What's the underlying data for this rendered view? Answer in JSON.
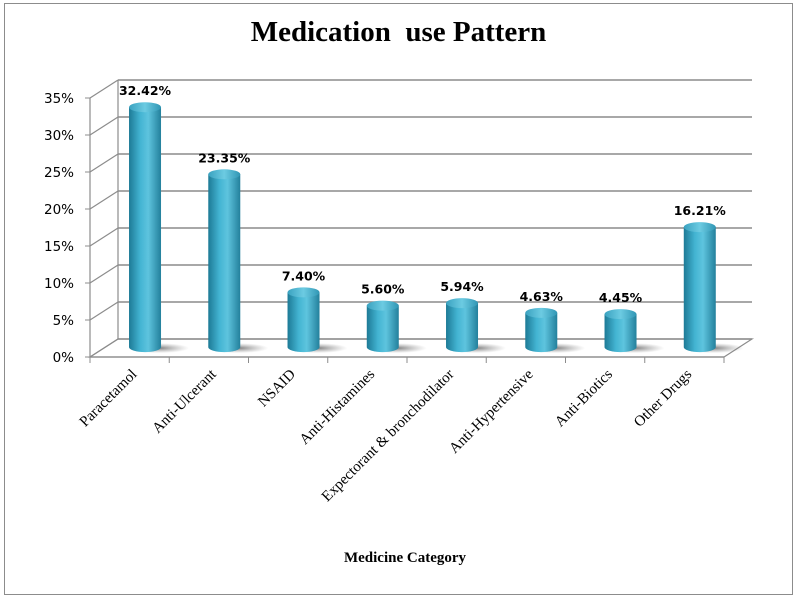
{
  "chart_data": {
    "type": "bar",
    "style": "3d-cylinder",
    "title": "Medication  use Pattern",
    "xlabel": "Medicine Category",
    "ylabel": "",
    "categories": [
      "Paracetamol",
      "Anti-Ulcerant",
      "NSAID",
      "Anti-Histamines",
      "Expectorant & bronchodilator",
      "Anti-Hypertensive",
      "Anti-Biotics",
      "Other Drugs"
    ],
    "values": [
      32.42,
      23.35,
      7.4,
      5.6,
      5.94,
      4.63,
      4.45,
      16.21
    ],
    "data_labels": [
      "32.42%",
      "23.35%",
      "7.40%",
      "5.60%",
      "5.94%",
      "4.63%",
      "4.45%",
      "16.21%"
    ],
    "ylim": [
      0,
      35
    ],
    "yticks": [
      0,
      5,
      10,
      15,
      20,
      25,
      30,
      35
    ],
    "ytick_labels": [
      "0%",
      "5%",
      "10%",
      "15%",
      "20%",
      "25%",
      "30%",
      "35%"
    ],
    "grid": true,
    "legend": "none",
    "colors": {
      "bar": "#3aa9c8",
      "bar_dark": "#1f7f9c",
      "bar_light": "#5cc3dd",
      "grid": "#8c8c8c"
    }
  }
}
